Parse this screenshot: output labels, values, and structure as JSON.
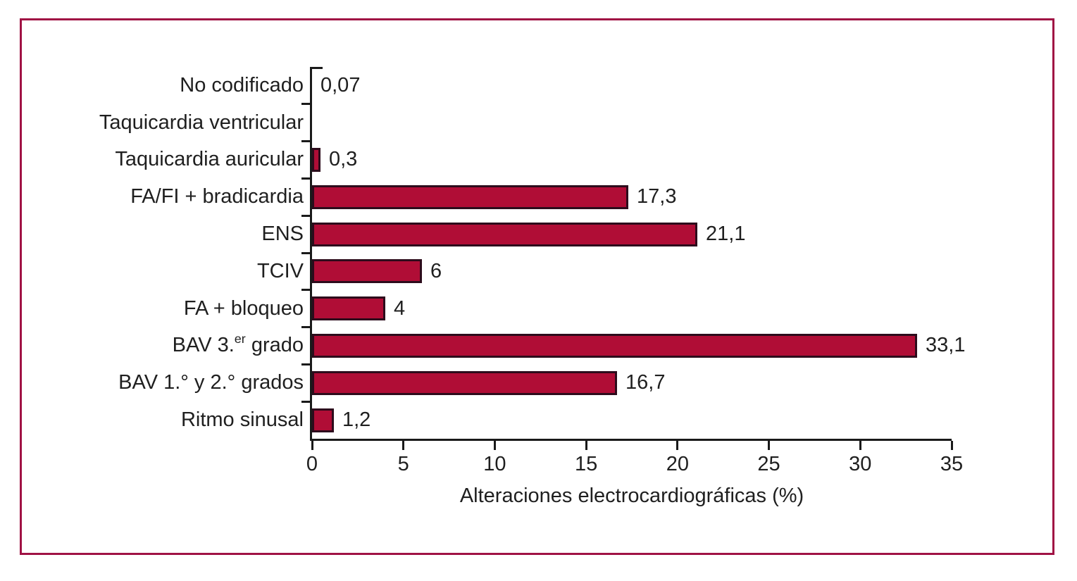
{
  "style": {
    "bar_fill": "#b00d36",
    "bar_border": "#2d0c1c",
    "axis_color": "#1a1a1a",
    "frame_border": "#a01244",
    "text_color": "#1f1f1f",
    "background": "#ffffff"
  },
  "chart_data": {
    "type": "bar",
    "orientation": "horizontal",
    "title": "",
    "xlabel": "Alteraciones electrocardiográficas (%)",
    "ylabel": "",
    "xlim": [
      0,
      35
    ],
    "x_ticks": [
      "0",
      "5",
      "10",
      "15",
      "20",
      "25",
      "30",
      "35"
    ],
    "grid": false,
    "legend": false,
    "categories": [
      "No codificado",
      "Taquicardia ventricular",
      "Taquicardia auricular",
      "FA/FI + bradicardia",
      "ENS",
      "TCIV",
      "FA + bloqueo",
      "BAV 3.er grado",
      "BAV 1.° y 2.° grados",
      "Ritmo sinusal"
    ],
    "values": [
      0.07,
      0,
      0.3,
      17.3,
      21.1,
      6,
      4,
      33.1,
      16.7,
      1.2
    ],
    "value_labels": [
      "0,07",
      "",
      "0,3",
      "17,3",
      "21,1",
      "6",
      "4",
      "33,1",
      "16,7",
      "1,2"
    ],
    "superscript": {
      "index": 7,
      "pre": "BAV 3.",
      "sup": "er",
      "post": " grado"
    }
  }
}
